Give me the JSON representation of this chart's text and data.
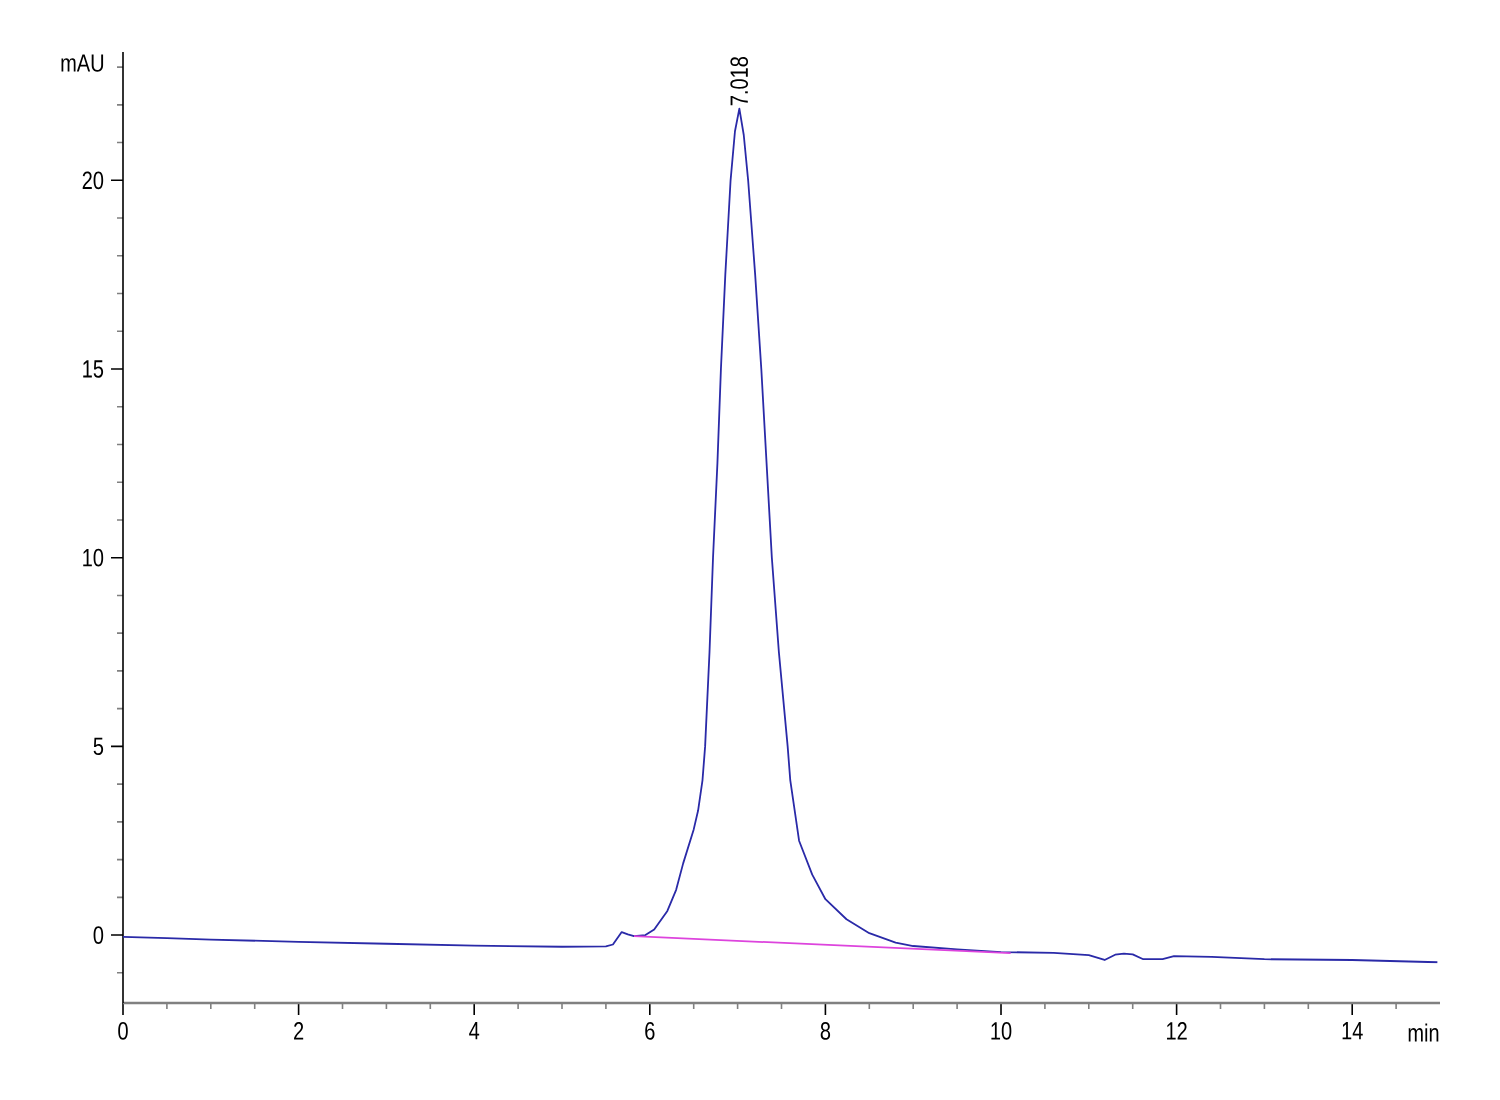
{
  "chart_data": {
    "type": "line",
    "xlabel": "min",
    "ylabel": "mAU",
    "xlim": [
      0,
      15
    ],
    "ylim": [
      -1.8,
      23.4
    ],
    "xticks": [
      0,
      {
        "value": 0.5,
        "label": null
      },
      {
        "value": 1,
        "label": null
      },
      {
        "value": 1.5,
        "label": null
      },
      2,
      {
        "value": 2.5,
        "label": null
      },
      {
        "value": 3,
        "label": null
      },
      {
        "value": 3.5,
        "label": null
      },
      4,
      {
        "value": 4.5,
        "label": null
      },
      {
        "value": 5,
        "label": null
      },
      {
        "value": 5.5,
        "label": null
      },
      6,
      {
        "value": 6.5,
        "label": null
      },
      {
        "value": 7,
        "label": null
      },
      {
        "value": 7.5,
        "label": null
      },
      8,
      {
        "value": 8.5,
        "label": null
      },
      {
        "value": 9,
        "label": null
      },
      {
        "value": 9.5,
        "label": null
      },
      10,
      {
        "value": 10.5,
        "label": null
      },
      {
        "value": 11,
        "label": null
      },
      {
        "value": 11.5,
        "label": null
      },
      12,
      {
        "value": 12.5,
        "label": null
      },
      {
        "value": 13,
        "label": null
      },
      {
        "value": 13.5,
        "label": null
      },
      14,
      {
        "value": 14.5,
        "label": null
      }
    ],
    "yticks": [
      {
        "value": -1,
        "label": null
      },
      0,
      {
        "value": 1,
        "label": null
      },
      {
        "value": 2,
        "label": null
      },
      {
        "value": 3,
        "label": null
      },
      {
        "value": 4,
        "label": null
      },
      5,
      {
        "value": 6,
        "label": null
      },
      {
        "value": 7,
        "label": null
      },
      {
        "value": 8,
        "label": null
      },
      {
        "value": 9,
        "label": null
      },
      10,
      {
        "value": 11,
        "label": null
      },
      {
        "value": 12,
        "label": null
      },
      {
        "value": 13,
        "label": null
      },
      {
        "value": 14,
        "label": null
      },
      15,
      {
        "value": 16,
        "label": null
      },
      {
        "value": 17,
        "label": null
      },
      {
        "value": 18,
        "label": null
      },
      {
        "value": 19,
        "label": null
      },
      20,
      {
        "value": 21,
        "label": null
      },
      {
        "value": 22,
        "label": null
      },
      {
        "value": 23,
        "label": null
      }
    ],
    "series": [
      {
        "color": "#2a2aa8",
        "x": [
          0,
          0.5,
          1,
          2,
          3,
          4,
          5,
          5.5,
          5.58,
          5.68,
          5.75,
          5.82,
          5.95,
          6.05,
          6.2,
          6.3,
          6.38,
          6.5,
          6.55,
          6.6,
          6.63,
          6.68,
          6.72,
          6.77,
          6.81,
          6.86,
          6.92,
          6.97,
          7.02,
          7.07,
          7.12,
          7.2,
          7.27,
          7.33,
          7.39,
          7.47,
          7.57,
          7.6,
          7.7,
          7.85,
          8.0,
          8.24,
          8.5,
          8.8,
          9.0,
          9.5,
          10.0,
          10.6,
          11.0,
          11.18,
          11.3,
          11.4,
          11.5,
          11.62,
          11.84,
          11.97,
          12.4,
          13.0,
          14.0,
          14.97
        ],
        "values": [
          -0.05,
          -0.08,
          -0.12,
          -0.18,
          -0.23,
          -0.28,
          -0.31,
          -0.3,
          -0.25,
          0.08,
          0.02,
          -0.03,
          0.0,
          0.15,
          0.64,
          1.2,
          1.9,
          2.8,
          3.3,
          4.1,
          5.0,
          7.5,
          10.0,
          12.5,
          15.0,
          17.5,
          20.0,
          21.3,
          21.9,
          21.2,
          20.0,
          17.5,
          15.0,
          12.5,
          10.0,
          7.5,
          5.0,
          4.1,
          2.5,
          1.6,
          0.95,
          0.42,
          0.05,
          -0.2,
          -0.29,
          -0.38,
          -0.45,
          -0.47,
          -0.53,
          -0.66,
          -0.52,
          -0.49,
          -0.51,
          -0.64,
          -0.64,
          -0.56,
          -0.58,
          -0.64,
          -0.66,
          -0.72
        ]
      },
      {
        "color": "#dd44dd",
        "x": [
          5.82,
          10.11
        ],
        "values": [
          -0.03,
          -0.48
        ]
      }
    ],
    "annotations": [
      {
        "text": "7.018",
        "x": 7.018,
        "y": 21.9
      }
    ]
  }
}
